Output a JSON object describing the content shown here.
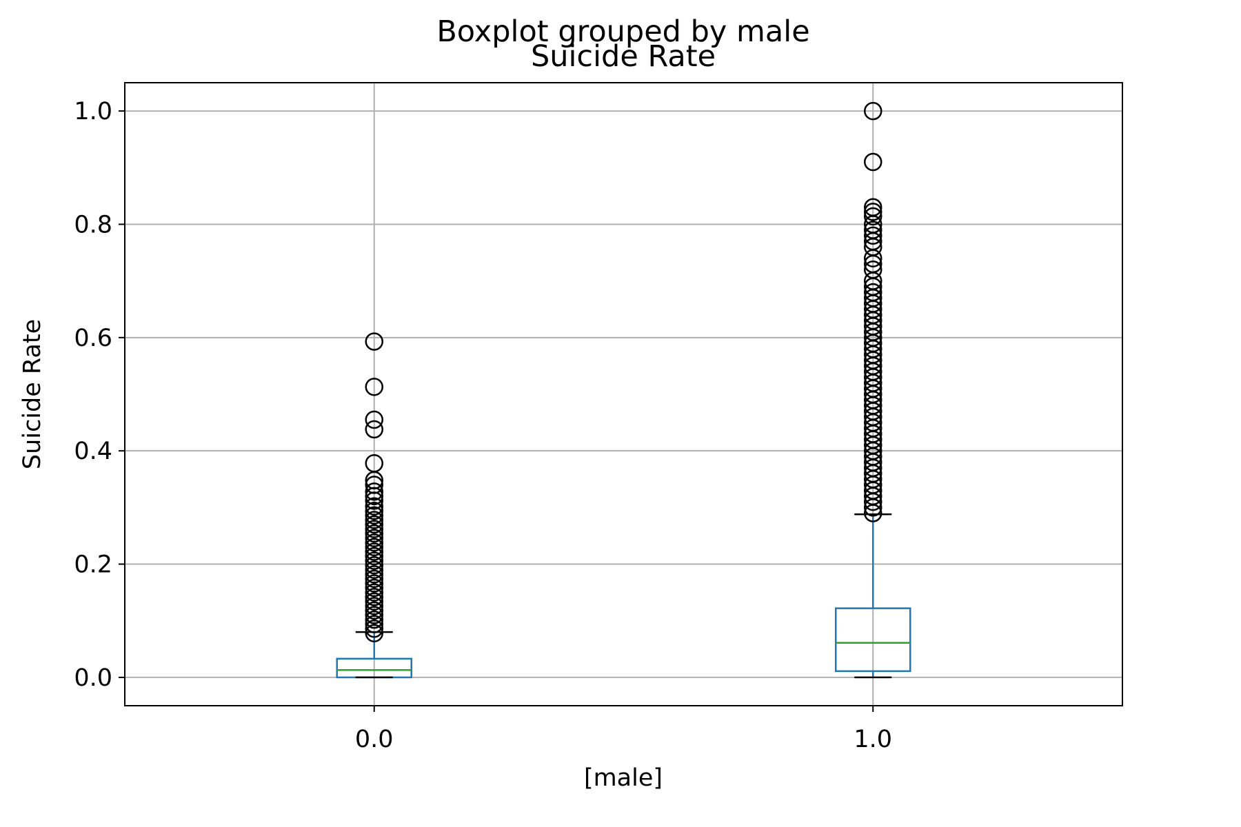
{
  "chart_data": {
    "type": "box",
    "suptitle": "Boxplot grouped by male",
    "title": "Suicide Rate",
    "xlabel": "[male]",
    "ylabel": "Suicide Rate",
    "ylim": [
      -0.05,
      1.05
    ],
    "yticks": [
      0.0,
      0.2,
      0.4,
      0.6,
      0.8,
      1.0
    ],
    "ytick_labels": [
      "0.0",
      "0.2",
      "0.4",
      "0.6",
      "0.8",
      "1.0"
    ],
    "grid": true,
    "categories": [
      "0.0",
      "1.0"
    ],
    "boxes": [
      {
        "category": "0.0",
        "whisker_low": 0.0,
        "q1": 0.0,
        "median": 0.013,
        "q3": 0.033,
        "whisker_high": 0.08,
        "outliers": [
          0.593,
          0.513,
          0.455,
          0.438,
          0.378,
          0.348,
          0.34,
          0.328,
          0.32,
          0.312,
          0.302,
          0.294,
          0.286,
          0.278,
          0.27,
          0.262,
          0.254,
          0.246,
          0.238,
          0.23,
          0.222,
          0.214,
          0.206,
          0.198,
          0.19,
          0.182,
          0.174,
          0.166,
          0.158,
          0.15,
          0.142,
          0.134,
          0.126,
          0.118,
          0.11,
          0.102,
          0.094,
          0.086,
          0.078
        ]
      },
      {
        "category": "1.0",
        "whisker_low": 0.0,
        "q1": 0.011,
        "median": 0.061,
        "q3": 0.122,
        "whisker_high": 0.288,
        "outliers": [
          1.0,
          0.91,
          0.83,
          0.822,
          0.814,
          0.8,
          0.79,
          0.78,
          0.77,
          0.76,
          0.74,
          0.73,
          0.72,
          0.7,
          0.69,
          0.68,
          0.67,
          0.66,
          0.65,
          0.64,
          0.63,
          0.62,
          0.61,
          0.6,
          0.59,
          0.58,
          0.57,
          0.56,
          0.55,
          0.54,
          0.53,
          0.52,
          0.51,
          0.5,
          0.49,
          0.48,
          0.47,
          0.46,
          0.45,
          0.44,
          0.43,
          0.42,
          0.41,
          0.4,
          0.39,
          0.38,
          0.37,
          0.36,
          0.35,
          0.34,
          0.33,
          0.32,
          0.31,
          0.3,
          0.29
        ]
      }
    ],
    "colors": {
      "box": "#1f77b4",
      "median": "#2ca02c",
      "grid": "#b0b0b0",
      "flier": "#000000"
    }
  }
}
